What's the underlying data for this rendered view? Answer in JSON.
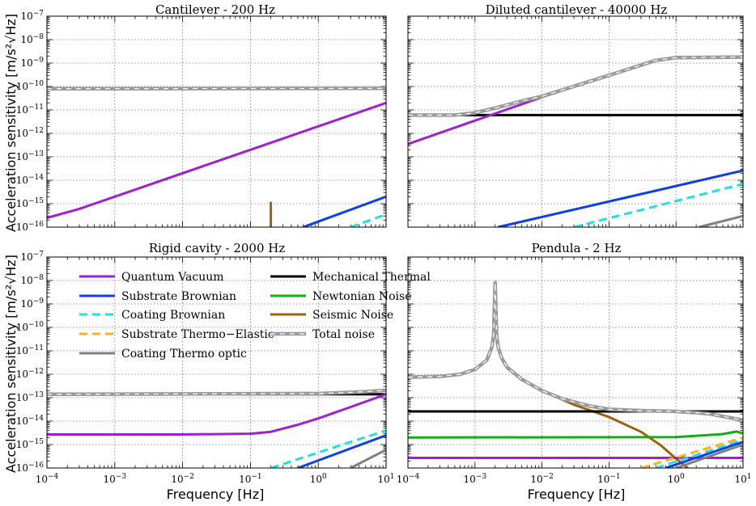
{
  "figure": {
    "ylabel": "Acceleration sensitivity [m/s²√Hz]",
    "xlabel": "Frequency [Hz]"
  },
  "colors": {
    "quantum_vacuum": "#a020d0",
    "mechanical_thermal": "#000000",
    "substrate_brownian": "#1040e0",
    "newtonian_noise": "#10b010",
    "coating_brownian": "#20e0e0",
    "seismic_noise": "#a06010",
    "substrate_thermo_elastic": "#ffb020",
    "total_noise": "#b0b0b0",
    "coating_thermo_optic": "#808080"
  },
  "legend": {
    "items": [
      {
        "key": "quantum_vacuum",
        "label": "Quantum Vacuum",
        "style": "solid"
      },
      {
        "key": "mechanical_thermal",
        "label": "Mechanical Thermal",
        "style": "solid"
      },
      {
        "key": "substrate_brownian",
        "label": "Substrate Brownian",
        "style": "solid"
      },
      {
        "key": "newtonian_noise",
        "label": "Newtonian Noise",
        "style": "solid"
      },
      {
        "key": "coating_brownian",
        "label": "Coating Brownian",
        "style": "dash"
      },
      {
        "key": "seismic_noise",
        "label": "Seismic Noise",
        "style": "solid"
      },
      {
        "key": "substrate_thermo_elastic",
        "label": "Substrate Thermo−Elastic",
        "style": "dash"
      },
      {
        "key": "total_noise",
        "label": "Total noise",
        "style": "total"
      },
      {
        "key": "coating_thermo_optic",
        "label": "Coating Thermo optic",
        "style": "solid"
      }
    ]
  },
  "chart_data": [
    {
      "type": "line",
      "title": "Cantilever - 200 Hz",
      "xlabel": "",
      "ylabel": "Acceleration sensitivity [m/s²√Hz]",
      "xscale": "log",
      "yscale": "log",
      "xlim": [
        0.0001,
        10
      ],
      "ylim": [
        1e-16,
        1e-07
      ],
      "x_ticks": [
        "10⁻⁴",
        "10⁻³",
        "10⁻²",
        "10⁻¹",
        "10⁰",
        "10¹"
      ],
      "y_ticks": [
        "10⁻¹⁶",
        "10⁻¹⁵",
        "10⁻¹⁴",
        "10⁻¹³",
        "10⁻¹²",
        "10⁻¹¹",
        "10⁻¹⁰",
        "10⁻⁹",
        "10⁻⁸",
        "10⁻⁷"
      ],
      "series": [
        {
          "name": "Quantum Vacuum",
          "key": "quantum_vacuum",
          "points": [
            [
              0.0001,
              2.5e-16
            ],
            [
              0.0003,
              6e-16
            ],
            [
              0.001,
              2e-15
            ],
            [
              0.01,
              2e-14
            ],
            [
              0.1,
              2e-13
            ],
            [
              1,
              2e-12
            ],
            [
              10,
              2e-11
            ]
          ]
        },
        {
          "name": "Mechanical Thermal",
          "key": "mechanical_thermal",
          "points": [
            [
              0.0001,
              8e-11
            ],
            [
              10,
              8e-11
            ]
          ]
        },
        {
          "name": "Total noise",
          "key": "total_noise",
          "points": [
            [
              0.0001,
              8e-11
            ],
            [
              10,
              8.3e-11
            ]
          ]
        },
        {
          "name": "Substrate Brownian",
          "key": "substrate_brownian",
          "points": [
            [
              0.6,
              1e-16
            ],
            [
              10,
              2e-15
            ]
          ]
        },
        {
          "name": "Coating Brownian",
          "key": "coating_brownian",
          "points": [
            [
              3,
              1e-16
            ],
            [
              10,
              3.5e-16
            ]
          ]
        },
        {
          "name": "Seismic Noise",
          "key": "seismic_noise",
          "points": [
            [
              0.2,
              1e-16
            ],
            [
              0.2,
              1.2e-15
            ]
          ]
        }
      ]
    },
    {
      "type": "line",
      "title": "Diluted cantilever - 40000 Hz",
      "xlabel": "",
      "ylabel": "",
      "xscale": "log",
      "yscale": "log",
      "xlim": [
        0.0001,
        10
      ],
      "ylim": [
        1e-16,
        1e-07
      ],
      "x_ticks": [
        "10⁻⁴",
        "10⁻³",
        "10⁻²",
        "10⁻¹",
        "10⁰",
        "10¹"
      ],
      "y_ticks": [],
      "series": [
        {
          "name": "Mechanical Thermal",
          "key": "mechanical_thermal",
          "points": [
            [
              0.0001,
              6e-12
            ],
            [
              10,
              6e-12
            ]
          ]
        },
        {
          "name": "Quantum Vacuum",
          "key": "quantum_vacuum",
          "points": [
            [
              0.0001,
              3.5e-13
            ],
            [
              0.001,
              3.5e-12
            ],
            [
              0.01,
              3.5e-11
            ],
            [
              0.1,
              3e-10
            ],
            [
              0.5,
              1.3e-09
            ],
            [
              1,
              1.7e-09
            ],
            [
              10,
              1.8e-09
            ]
          ]
        },
        {
          "name": "Total noise",
          "key": "total_noise",
          "points": [
            [
              0.0001,
              6e-12
            ],
            [
              0.0005,
              6e-12
            ],
            [
              0.001,
              7.5e-12
            ],
            [
              0.002,
              1.2e-11
            ],
            [
              0.005,
              2.4e-11
            ],
            [
              0.01,
              3.8e-11
            ],
            [
              0.1,
              3e-10
            ],
            [
              0.5,
              1.3e-09
            ],
            [
              1,
              1.7e-09
            ],
            [
              10,
              1.8e-09
            ]
          ]
        },
        {
          "name": "Substrate Brownian",
          "key": "substrate_brownian",
          "points": [
            [
              0.0022,
              1e-16
            ],
            [
              10,
              2.6e-14
            ]
          ]
        },
        {
          "name": "Coating Brownian",
          "key": "coating_brownian",
          "points": [
            [
              0.03,
              1e-16
            ],
            [
              10,
              7e-15
            ]
          ]
        },
        {
          "name": "Coating Thermo optic",
          "key": "coating_thermo_optic",
          "points": [
            [
              2.2,
              1e-16
            ],
            [
              10,
              3e-16
            ]
          ]
        }
      ]
    },
    {
      "type": "line",
      "title": "Rigid cavity - 2000 Hz",
      "xlabel": "Frequency [Hz]",
      "ylabel": "Acceleration sensitivity [m/s²√Hz]",
      "xscale": "log",
      "yscale": "log",
      "xlim": [
        0.0001,
        10
      ],
      "ylim": [
        1e-16,
        1e-07
      ],
      "x_ticks": [
        "10⁻⁴",
        "10⁻³",
        "10⁻²",
        "10⁻¹",
        "10⁰",
        "10¹"
      ],
      "y_ticks": [
        "10⁻¹⁶",
        "10⁻¹⁵",
        "10⁻¹⁴",
        "10⁻¹³",
        "10⁻¹²",
        "10⁻¹¹",
        "10⁻¹⁰",
        "10⁻⁹",
        "10⁻⁸",
        "10⁻⁷"
      ],
      "series": [
        {
          "name": "Mechanical Thermal",
          "key": "mechanical_thermal",
          "points": [
            [
              0.0001,
              1.4e-13
            ],
            [
              10,
              1.4e-13
            ]
          ]
        },
        {
          "name": "Quantum Vacuum",
          "key": "quantum_vacuum",
          "points": [
            [
              0.0001,
              2.7e-15
            ],
            [
              0.01,
              2.7e-15
            ],
            [
              0.1,
              2.9e-15
            ],
            [
              0.2,
              3.5e-15
            ],
            [
              0.5,
              7e-15
            ],
            [
              1,
              1.3e-14
            ],
            [
              3,
              4e-14
            ],
            [
              10,
              1.4e-13
            ]
          ]
        },
        {
          "name": "Total noise",
          "key": "total_noise",
          "points": [
            [
              0.0001,
              1.4e-13
            ],
            [
              1,
              1.5e-13
            ],
            [
              5,
              1.8e-13
            ],
            [
              10,
              2.1e-13
            ]
          ]
        },
        {
          "name": "Coating Brownian",
          "key": "coating_brownian",
          "points": [
            [
              0.2,
              1e-16
            ],
            [
              10,
              4e-15
            ]
          ]
        },
        {
          "name": "Substrate Brownian",
          "key": "substrate_brownian",
          "points": [
            [
              0.5,
              1e-16
            ],
            [
              10,
              2.5e-15
            ]
          ]
        },
        {
          "name": "Coating Thermo optic",
          "key": "coating_thermo_optic",
          "points": [
            [
              3,
              1e-16
            ],
            [
              10,
              6e-16
            ]
          ]
        }
      ]
    },
    {
      "type": "line",
      "title": "Pendula - 2 Hz",
      "xlabel": "Frequency [Hz]",
      "ylabel": "",
      "xscale": "log",
      "yscale": "log",
      "xlim": [
        0.0001,
        10
      ],
      "ylim": [
        1e-16,
        1e-07
      ],
      "x_ticks": [
        "10⁻⁴",
        "10⁻³",
        "10⁻²",
        "10⁻¹",
        "10⁰",
        "10¹"
      ],
      "y_ticks": [],
      "series": [
        {
          "name": "Seismic Noise",
          "key": "seismic_noise",
          "points": [
            [
              0.0001,
              7.5e-13
            ],
            [
              0.0003,
              8e-13
            ],
            [
              0.0006,
              1e-12
            ],
            [
              0.001,
              1.6e-12
            ],
            [
              0.0015,
              4e-12
            ],
            [
              0.0018,
              1.5e-11
            ],
            [
              0.0019,
              5e-11
            ],
            [
              0.002,
              8e-09
            ],
            [
              0.0021,
              5e-11
            ],
            [
              0.0022,
              1.5e-11
            ],
            [
              0.0025,
              5e-12
            ],
            [
              0.003,
              2e-12
            ],
            [
              0.005,
              6e-13
            ],
            [
              0.01,
              2e-13
            ],
            [
              0.03,
              5e-14
            ],
            [
              0.1,
              1.5e-14
            ],
            [
              0.3,
              3.5e-15
            ],
            [
              0.6,
              9e-16
            ],
            [
              1,
              2.5e-16
            ],
            [
              1.5,
              1e-16
            ]
          ]
        },
        {
          "name": "Mechanical Thermal",
          "key": "mechanical_thermal",
          "points": [
            [
              0.0001,
              2.6e-14
            ],
            [
              10,
              2.6e-14
            ]
          ]
        },
        {
          "name": "Total noise",
          "key": "total_noise",
          "points": [
            [
              0.0001,
              7.5e-13
            ],
            [
              0.0003,
              8e-13
            ],
            [
              0.0006,
              1e-12
            ],
            [
              0.001,
              1.6e-12
            ],
            [
              0.0015,
              4e-12
            ],
            [
              0.0018,
              1.5e-11
            ],
            [
              0.0019,
              5e-11
            ],
            [
              0.002,
              8e-09
            ],
            [
              0.0021,
              5e-11
            ],
            [
              0.0022,
              1.5e-11
            ],
            [
              0.0025,
              5e-12
            ],
            [
              0.003,
              2e-12
            ],
            [
              0.005,
              6e-13
            ],
            [
              0.01,
              2e-13
            ],
            [
              0.02,
              9e-14
            ],
            [
              0.05,
              4.5e-14
            ],
            [
              0.1,
              3.2e-14
            ],
            [
              0.3,
              2.8e-14
            ],
            [
              1,
              2.6e-14
            ],
            [
              3,
              2.1e-14
            ],
            [
              10,
              1.1e-14
            ]
          ]
        },
        {
          "name": "Newtonian Noise",
          "key": "newtonian_noise",
          "points": [
            [
              0.0001,
              2e-15
            ],
            [
              1,
              2.1e-15
            ],
            [
              5,
              2.8e-15
            ],
            [
              8,
              3.6e-15
            ],
            [
              10,
              3e-15
            ]
          ]
        },
        {
          "name": "Quantum Vacuum",
          "key": "quantum_vacuum",
          "points": [
            [
              0.0001,
              2.7e-16
            ],
            [
              10,
              2.7e-16
            ]
          ]
        },
        {
          "name": "Substrate Thermo−Elastic",
          "key": "substrate_thermo_elastic",
          "points": [
            [
              0.3,
              1e-16
            ],
            [
              10,
              2e-15
            ]
          ]
        },
        {
          "name": "Coating Brownian",
          "key": "coating_brownian",
          "points": [
            [
              0.5,
              1e-16
            ],
            [
              10,
              1.6e-15
            ]
          ]
        },
        {
          "name": "Substrate Brownian",
          "key": "substrate_brownian",
          "points": [
            [
              0.7,
              1e-16
            ],
            [
              10,
              1.3e-15
            ]
          ]
        },
        {
          "name": "Coating Thermo optic",
          "key": "coating_thermo_optic",
          "points": [
            [
              1,
              1e-16
            ],
            [
              10,
              1e-15
            ]
          ]
        }
      ]
    }
  ]
}
